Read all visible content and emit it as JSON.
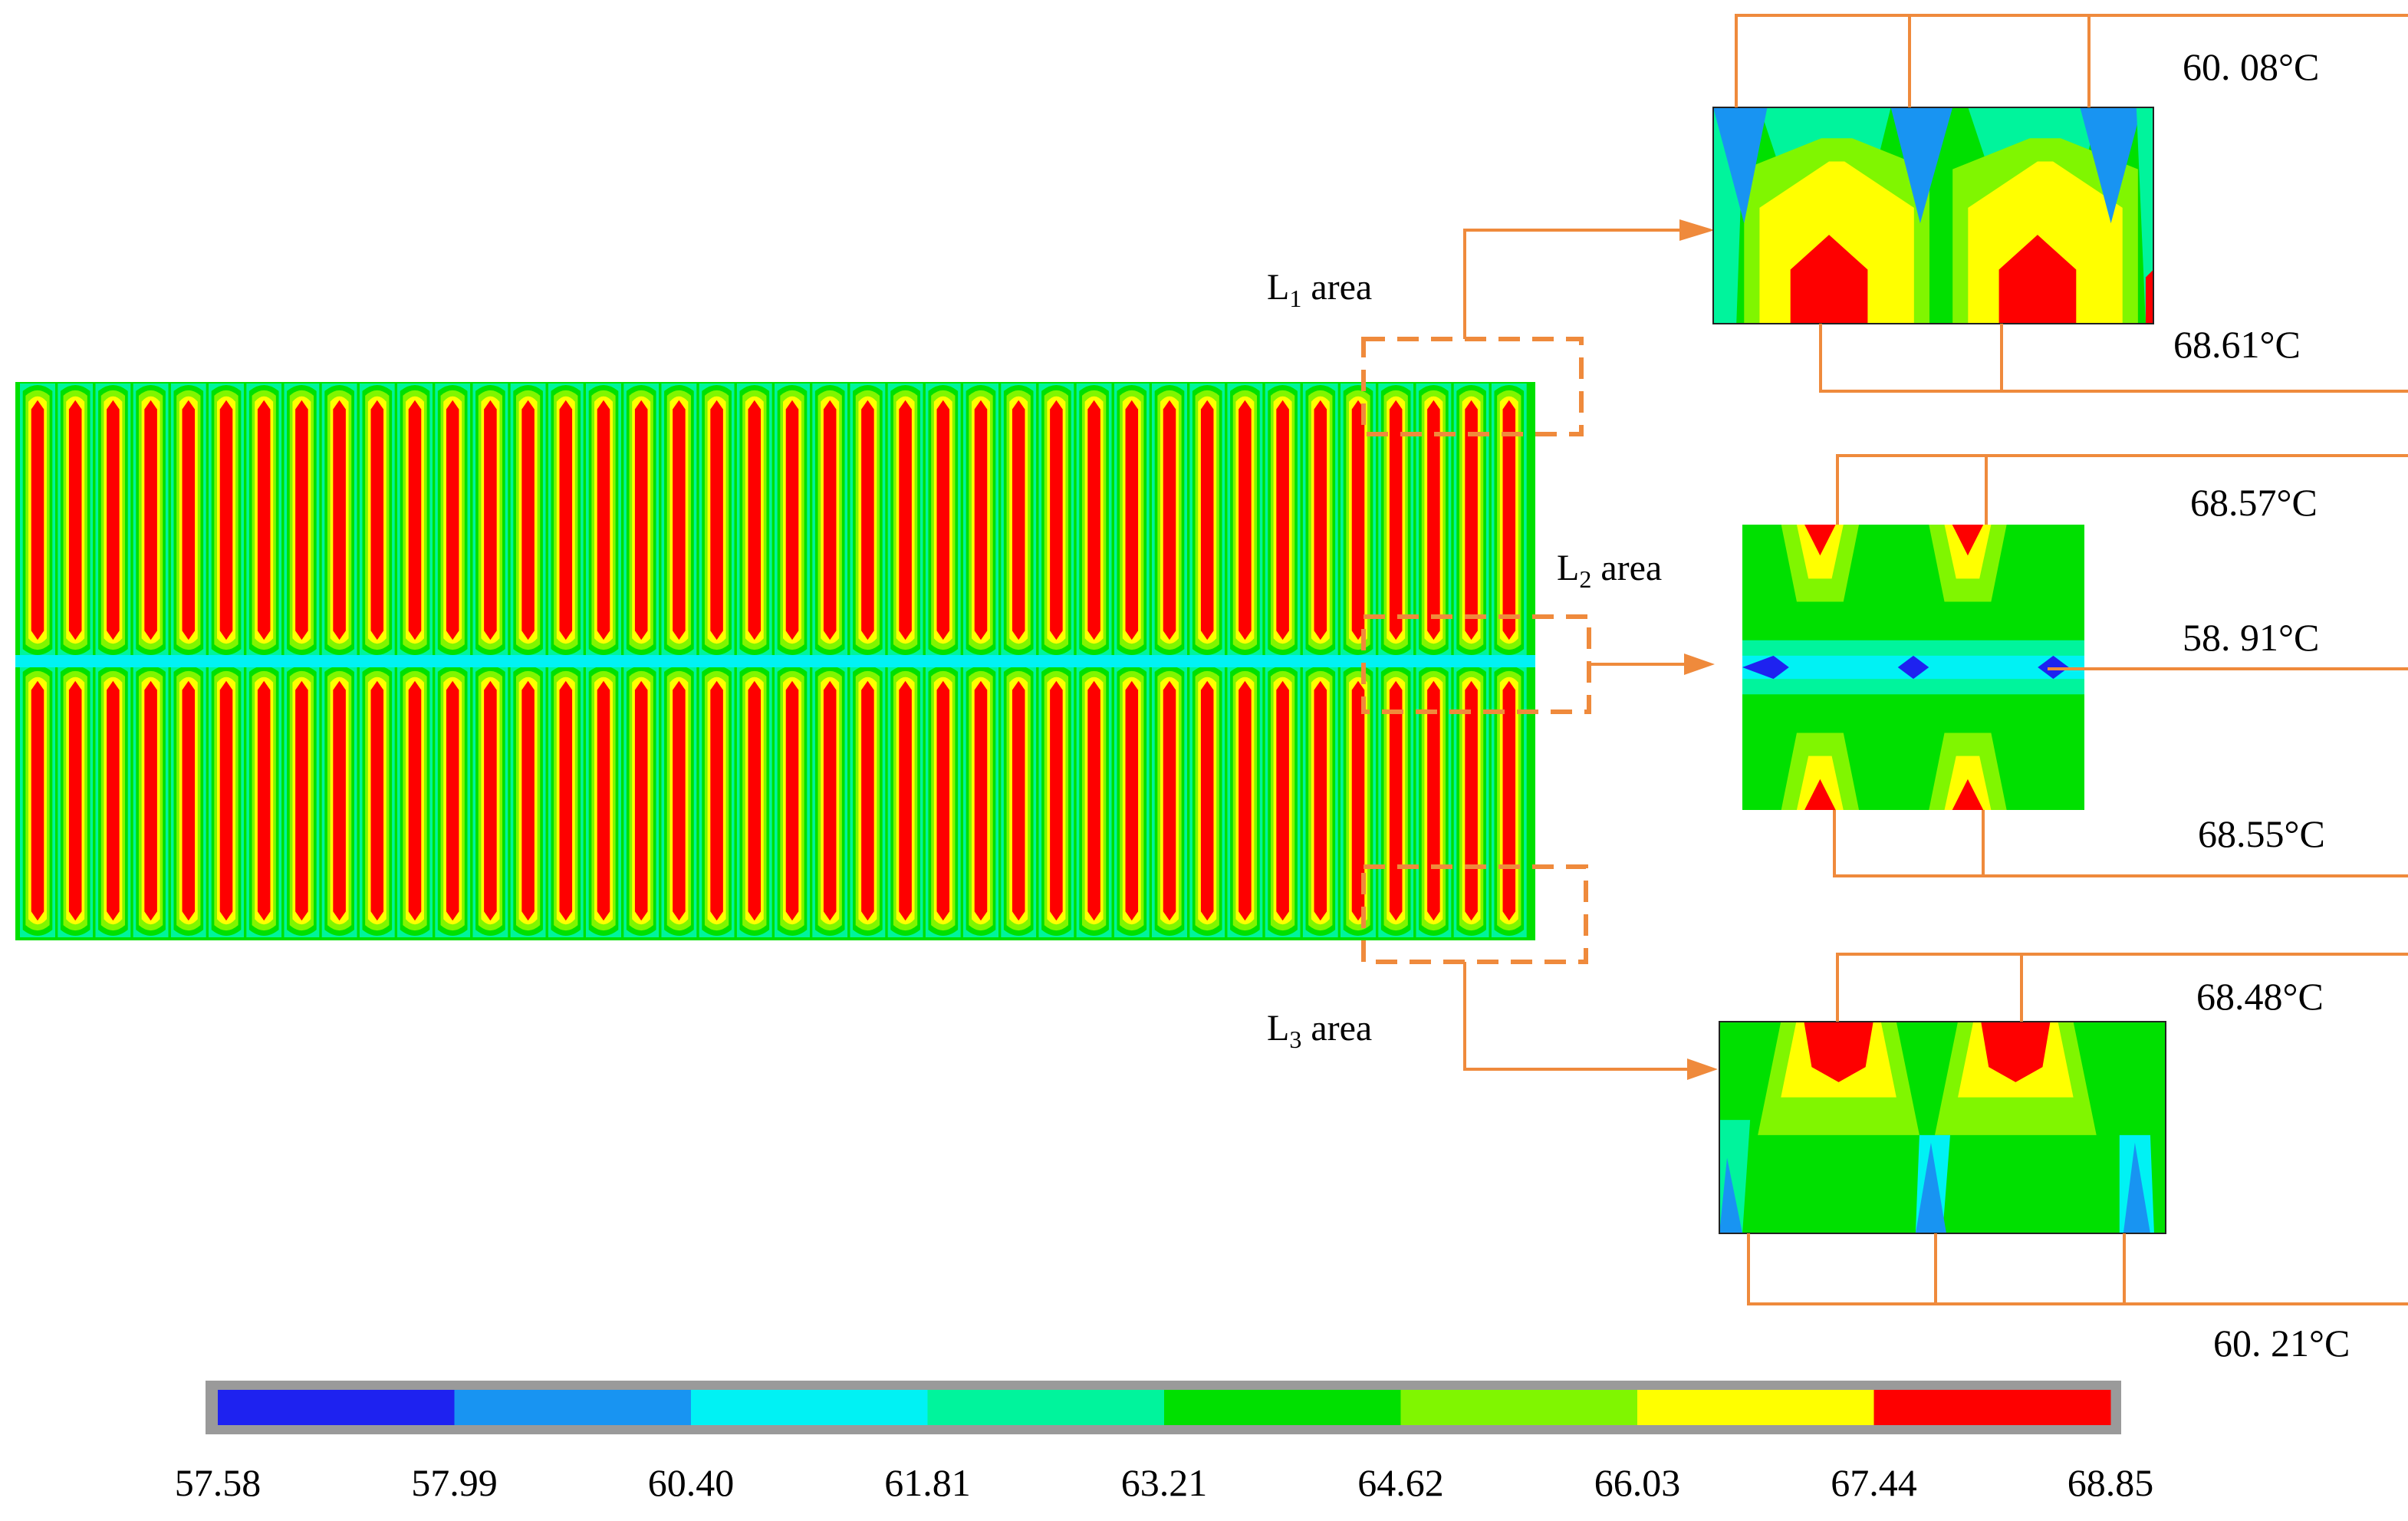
{
  "colors": {
    "scale": [
      "#1e22f0",
      "#1894f2",
      "#00f2f4",
      "#00f49c",
      "#00e000",
      "#80f600",
      "#ffff00",
      "#fe0000"
    ],
    "callout": "#ef8a3c"
  },
  "areas": {
    "l1": {
      "letter": "L",
      "sub": "1",
      "word": " area"
    },
    "l2": {
      "letter": "L",
      "sub": "2",
      "word": " area"
    },
    "l3": {
      "letter": "L",
      "sub": "3",
      "word": " area"
    }
  },
  "temps": {
    "l1_top": "60. 08°C",
    "l1_bottom": "68.61°C",
    "l2_top": "68.57°C",
    "l2_mid": "58. 91°C",
    "l2_bottom": "68.55°C",
    "l3_top": "68.48°C",
    "l3_bottom": "60. 21°C"
  },
  "colorbar": {
    "ticks": [
      "57.58",
      "57.99",
      "60.40",
      "61.81",
      "63.21",
      "64.62",
      "66.03",
      "67.44",
      "68.85"
    ]
  }
}
